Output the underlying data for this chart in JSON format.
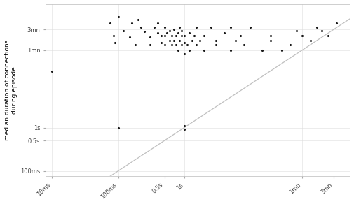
{
  "ylabel": "median duration of connections\nduring episode",
  "plot_bg": "#ffffff",
  "point_color": "#1a1a1a",
  "point_size": 5,
  "diagonal_color": "#c0c0c0",
  "x_ticks": [
    10,
    100,
    500,
    1000,
    60000,
    180000
  ],
  "x_labels": [
    "10ms",
    "100ms",
    "0.5s",
    "1s",
    "1mn",
    "3mn"
  ],
  "y_ticks": [
    100,
    500,
    1000,
    60000,
    180000
  ],
  "y_labels": [
    "100ms",
    "0.5s",
    "1s",
    "1mn",
    "3mn"
  ],
  "xlim": [
    8,
    320000
  ],
  "ylim": [
    75,
    700000
  ],
  "points": [
    [
      10,
      20000
    ],
    [
      75,
      250000
    ],
    [
      85,
      130000
    ],
    [
      90,
      90000
    ],
    [
      100,
      350000
    ],
    [
      100,
      1000
    ],
    [
      120,
      170000
    ],
    [
      150,
      120000
    ],
    [
      160,
      250000
    ],
    [
      180,
      80000
    ],
    [
      200,
      300000
    ],
    [
      220,
      200000
    ],
    [
      250,
      160000
    ],
    [
      300,
      120000
    ],
    [
      300,
      80000
    ],
    [
      350,
      200000
    ],
    [
      400,
      150000
    ],
    [
      400,
      250000
    ],
    [
      450,
      90000
    ],
    [
      450,
      130000
    ],
    [
      500,
      200000
    ],
    [
      500,
      130000
    ],
    [
      500,
      80000
    ],
    [
      550,
      150000
    ],
    [
      600,
      100000
    ],
    [
      600,
      170000
    ],
    [
      650,
      80000
    ],
    [
      650,
      130000
    ],
    [
      700,
      100000
    ],
    [
      700,
      180000
    ],
    [
      750,
      130000
    ],
    [
      750,
      80000
    ],
    [
      800,
      150000
    ],
    [
      800,
      60000
    ],
    [
      850,
      100000
    ],
    [
      850,
      200000
    ],
    [
      900,
      80000
    ],
    [
      900,
      130000
    ],
    [
      900,
      170000
    ],
    [
      1000,
      50000
    ],
    [
      1000,
      90000
    ],
    [
      1000,
      130000
    ],
    [
      1000,
      1100
    ],
    [
      1000,
      900
    ],
    [
      1100,
      80000
    ],
    [
      1200,
      150000
    ],
    [
      1200,
      60000
    ],
    [
      1300,
      100000
    ],
    [
      1400,
      130000
    ],
    [
      1500,
      80000
    ],
    [
      1500,
      200000
    ],
    [
      1700,
      100000
    ],
    [
      2000,
      60000
    ],
    [
      2000,
      130000
    ],
    [
      2500,
      200000
    ],
    [
      3000,
      80000
    ],
    [
      3000,
      100000
    ],
    [
      4000,
      150000
    ],
    [
      5000,
      60000
    ],
    [
      5000,
      200000
    ],
    [
      6000,
      100000
    ],
    [
      7000,
      130000
    ],
    [
      8000,
      80000
    ],
    [
      10000,
      200000
    ],
    [
      15000,
      60000
    ],
    [
      20000,
      100000
    ],
    [
      20000,
      130000
    ],
    [
      30000,
      60000
    ],
    [
      40000,
      80000
    ],
    [
      50000,
      170000
    ],
    [
      60000,
      130000
    ],
    [
      80000,
      100000
    ],
    [
      100000,
      200000
    ],
    [
      120000,
      170000
    ],
    [
      150000,
      130000
    ],
    [
      200000,
      250000
    ]
  ]
}
